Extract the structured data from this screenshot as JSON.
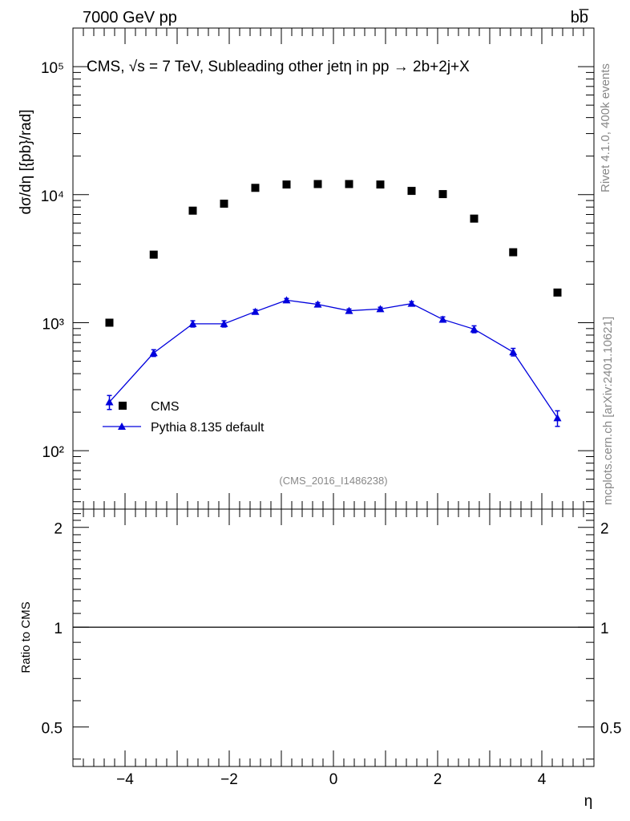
{
  "header": {
    "left": "7000 GeV pp",
    "right": "bb̅"
  },
  "side_text": {
    "rivet": "Rivet 4.1.0,  400k events",
    "mcplots": "mcplots.cern.ch [arXiv:2401.10621]"
  },
  "chart_data": [
    {
      "type": "scatter",
      "title": "CMS, √s = 7 TeV, Subleading other jetη in pp →  2b+2j+X",
      "ylabel": "dσ/dη [{pb}/rad]",
      "xlabel": "η",
      "yscale": "log",
      "xlim": [
        -5,
        5
      ],
      "ylim": [
        35,
        200000
      ],
      "ytick_labels": [
        "10²",
        "10³",
        "10⁴",
        "10⁵"
      ],
      "watermark": "(CMS_2016_I1486238)",
      "legend_position": "lower-left",
      "series": [
        {
          "name": "CMS",
          "marker": "square",
          "color": "#000000",
          "x": [
            -4.3,
            -3.45,
            -2.7,
            -2.1,
            -1.5,
            -0.9,
            -0.3,
            0.3,
            0.9,
            1.5,
            2.1,
            2.7,
            3.45,
            4.3
          ],
          "values": [
            1000,
            3400,
            7500,
            8500,
            11300,
            12000,
            12100,
            12100,
            12000,
            10700,
            10100,
            6500,
            3550,
            1720
          ]
        },
        {
          "name": "Pythia 8.135 default",
          "marker": "triangle",
          "line": true,
          "color": "#0000dd",
          "x": [
            -4.3,
            -3.45,
            -2.7,
            -2.1,
            -1.5,
            -0.9,
            -0.3,
            0.3,
            0.9,
            1.5,
            2.1,
            2.7,
            3.45,
            4.3
          ],
          "values": [
            240,
            580,
            980,
            980,
            1220,
            1500,
            1390,
            1240,
            1280,
            1410,
            1060,
            890,
            590,
            180
          ],
          "errors": [
            30,
            35,
            55,
            55,
            45,
            45,
            45,
            40,
            40,
            50,
            50,
            55,
            40,
            25
          ]
        }
      ]
    },
    {
      "type": "line",
      "ylabel": "Ratio to CMS",
      "xlabel": "η",
      "xlim": [
        -5,
        5
      ],
      "ylim": [
        0.38,
        2.27
      ],
      "xtick_labels": [
        "−4",
        "−2",
        "0",
        "2",
        "4"
      ],
      "xticks": [
        -4,
        -2,
        0,
        2,
        4
      ],
      "ytick_labels": [
        "0.5",
        "1",
        "2"
      ],
      "yticks": [
        0.5,
        1,
        2
      ],
      "reference_line": 1
    }
  ]
}
